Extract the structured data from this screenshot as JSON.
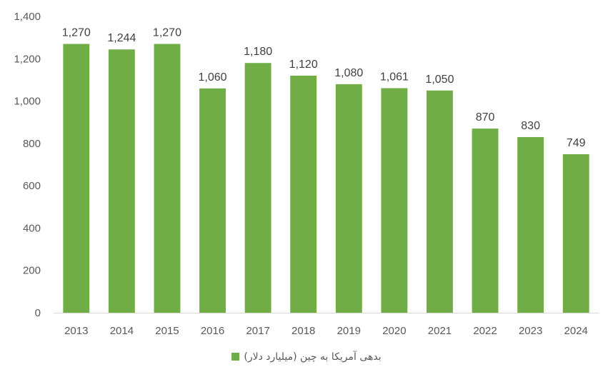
{
  "chart_data": {
    "type": "bar",
    "categories": [
      "2013",
      "2014",
      "2015",
      "2016",
      "2017",
      "2018",
      "2019",
      "2020",
      "2021",
      "2022",
      "2023",
      "2024"
    ],
    "series": [
      {
        "name": "بدهی آمریکا به چین (میلیارد دلار)",
        "values": [
          1270,
          1244,
          1270,
          1060,
          1180,
          1120,
          1080,
          1061,
          1050,
          870,
          830,
          749
        ],
        "labels": [
          "1,270",
          "1,244",
          "1,270",
          "1,060",
          "1,180",
          "1,120",
          "1,080",
          "1,061",
          "1,050",
          "870",
          "830",
          "749"
        ],
        "color": "#70AD47"
      }
    ],
    "ylim": [
      0,
      1400
    ],
    "yticks": [
      0,
      200,
      400,
      600,
      800,
      1000,
      1200,
      1400
    ],
    "ytick_labels": [
      "0",
      "200",
      "400",
      "600",
      "800",
      "1,000",
      "1,200",
      "1,400"
    ],
    "grid": false,
    "legend_position": "bottom",
    "axis_color": "#D9D9D9"
  }
}
